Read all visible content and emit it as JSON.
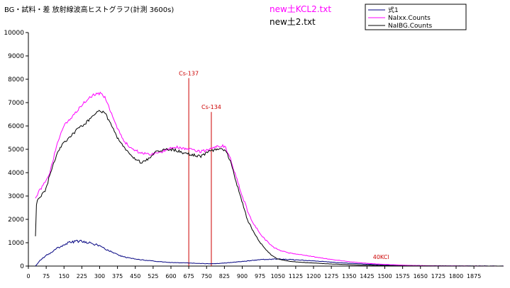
{
  "chart_data": {
    "type": "line",
    "title": "BG・試料・差 放射線波高ヒストグラフ(計測 3600s)",
    "file_labels": [
      "new土KCL2.txt",
      "new土2.txt"
    ],
    "ylim": [
      0,
      10000
    ],
    "y_ticks": [
      0,
      1000,
      2000,
      3000,
      4000,
      5000,
      6000,
      7000,
      8000,
      9000,
      10000
    ],
    "xlim": [
      0,
      2000
    ],
    "x_ticks": [
      0,
      75,
      150,
      225,
      300,
      375,
      450,
      525,
      600,
      675,
      750,
      825,
      900,
      975,
      1050,
      1125,
      1200,
      1275,
      1350,
      1425,
      1500,
      1575,
      1650,
      1725,
      1800,
      1875
    ],
    "legend_position": "top-right",
    "grid": false,
    "series": [
      {
        "name": "式1",
        "color": "#000080",
        "x": [
          30,
          50,
          75,
          100,
          125,
          150,
          175,
          200,
          225,
          250,
          275,
          300,
          325,
          350,
          375,
          400,
          450,
          500,
          550,
          600,
          650,
          700,
          750,
          800,
          850,
          900,
          950,
          1000,
          1050,
          1100,
          1200,
          1300,
          1400,
          1500,
          1600,
          1700,
          1800,
          1900,
          2000
        ],
        "y": [
          0,
          250,
          450,
          600,
          780,
          920,
          1020,
          1060,
          1050,
          1000,
          950,
          860,
          720,
          600,
          480,
          390,
          300,
          240,
          190,
          150,
          140,
          120,
          100,
          110,
          150,
          200,
          250,
          290,
          300,
          280,
          220,
          150,
          90,
          50,
          25,
          12,
          5,
          2,
          0
        ]
      },
      {
        "name": "NaIxx.Counts",
        "color": "#ff00ff",
        "x": [
          30,
          40,
          50,
          60,
          75,
          90,
          110,
          130,
          150,
          175,
          200,
          225,
          250,
          270,
          280,
          300,
          325,
          350,
          375,
          400,
          425,
          450,
          475,
          500,
          525,
          550,
          575,
          600,
          625,
          650,
          675,
          700,
          725,
          750,
          775,
          800,
          815,
          830,
          850,
          875,
          900,
          925,
          950,
          975,
          1000,
          1025,
          1050,
          1075,
          1100,
          1150,
          1200,
          1250,
          1300,
          1350,
          1400,
          1450,
          1500,
          1550,
          1600,
          1650,
          1700,
          1750,
          1800,
          1850,
          1900,
          2000
        ],
        "y": [
          2900,
          3100,
          3300,
          3400,
          3700,
          4000,
          4800,
          5500,
          6000,
          6300,
          6600,
          6900,
          7150,
          7300,
          7350,
          7400,
          7200,
          6500,
          5900,
          5400,
          5100,
          4950,
          4850,
          4800,
          4800,
          4850,
          4950,
          5050,
          5100,
          5050,
          5000,
          4950,
          4900,
          4950,
          5050,
          5150,
          5150,
          5100,
          4600,
          3800,
          3000,
          2300,
          1800,
          1400,
          1100,
          850,
          700,
          620,
          560,
          480,
          400,
          320,
          250,
          190,
          140,
          100,
          70,
          50,
          30,
          20,
          12,
          8,
          5,
          3,
          2,
          0
        ]
      },
      {
        "name": "NaIBG.Counts",
        "color": "#000000",
        "x": [
          30,
          33,
          38,
          45,
          60,
          75,
          90,
          110,
          130,
          150,
          175,
          200,
          225,
          250,
          275,
          300,
          325,
          350,
          375,
          400,
          425,
          450,
          475,
          500,
          525,
          550,
          575,
          600,
          625,
          650,
          675,
          700,
          725,
          750,
          775,
          800,
          815,
          830,
          850,
          875,
          900,
          925,
          950,
          975,
          1000,
          1025,
          1050,
          1075,
          1100,
          1150,
          1200,
          1250,
          1300,
          1350,
          1400,
          1450,
          1500,
          1550,
          1600,
          1650,
          1700,
          1750,
          1800,
          1850,
          1900,
          2000
        ],
        "y": [
          1300,
          2600,
          2800,
          2900,
          3100,
          3300,
          3900,
          4500,
          5000,
          5300,
          5500,
          5800,
          6000,
          6200,
          6500,
          6700,
          6500,
          6000,
          5500,
          5100,
          4800,
          4550,
          4450,
          4550,
          4800,
          4950,
          5000,
          5000,
          4950,
          4850,
          4800,
          4750,
          4700,
          4850,
          4950,
          5000,
          5000,
          4950,
          4500,
          3600,
          2700,
          1900,
          1400,
          1000,
          700,
          450,
          300,
          250,
          200,
          160,
          130,
          100,
          80,
          60,
          40,
          30,
          20,
          12,
          8,
          5,
          3,
          2,
          1,
          1,
          0,
          0
        ]
      }
    ],
    "annotations": [
      {
        "text": "Cs-137",
        "x": 675
      },
      {
        "text": "Cs-134",
        "x": 770
      },
      {
        "text": "40KCl",
        "x": 1450
      }
    ]
  },
  "colors": {
    "annotation_line": "#cc0000",
    "annotation_text": "#cc0000"
  }
}
